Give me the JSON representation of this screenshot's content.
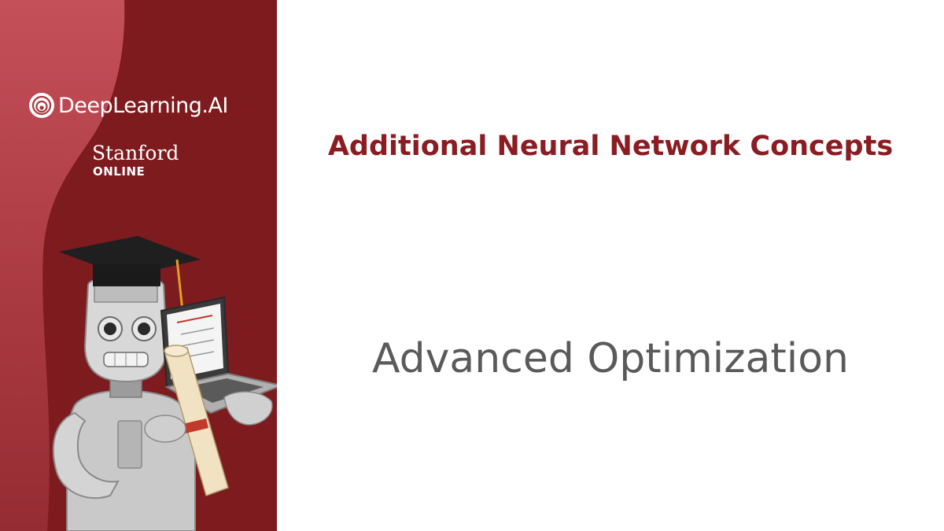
{
  "branding": {
    "logo_text": "DeepLearning.AI",
    "partner_name": "Stanford",
    "partner_sub": "ONLINE"
  },
  "slide": {
    "section_title": "Additional Neural Network Concepts",
    "title": "Advanced Optimization"
  },
  "colors": {
    "panel_red": "#7d1b1f",
    "panel_red_light": "#b8454d",
    "section_title": "#8a1c22",
    "slide_title": "#5a5a5a"
  },
  "icons": [
    "deeplearning-logo-icon",
    "robot-mascot-illustration"
  ]
}
